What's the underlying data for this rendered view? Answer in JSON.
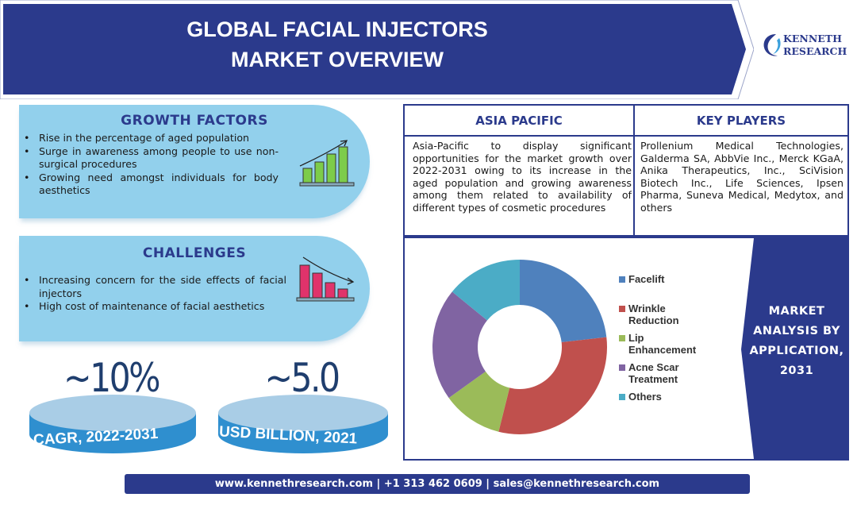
{
  "header": {
    "title_line1": "GLOBAL FACIAL INJECTORS",
    "title_line2": "MARKET OVERVIEW",
    "logo_line1": "KENNETH",
    "logo_line2": "RESEARCH",
    "brand_color": "#2b3a8c"
  },
  "growth_factors": {
    "title": "GROWTH FACTORS",
    "items": [
      "Rise in the percentage of aged population",
      "Surge in awareness among people to use non-surgical procedures",
      "Growing need amongst individuals for body aesthetics"
    ],
    "icon": "bar-chart-up-icon"
  },
  "challenges": {
    "title": "CHALLENGES",
    "items": [
      "Increasing concern for the side effects of facial injectors",
      "High cost of maintenance of facial aesthetics"
    ],
    "icon": "bar-chart-down-icon"
  },
  "stats": [
    {
      "value": "~10%",
      "label": "CAGR, 2022-2031"
    },
    {
      "value": "~5.0",
      "label": "USD BILLION, 2021"
    }
  ],
  "asia_pacific": {
    "title": "ASIA PACIFIC",
    "text": "Asia-Pacific to display significant opportunities for the market growth over 2022-2031 owing to its increase in the aged population and growing awareness among them related to availability of different types of cosmetic procedures"
  },
  "key_players": {
    "title": "KEY PLAYERS",
    "text": "Prollenium Medical Technologies, Galderma SA, AbbVie Inc., Merck KGaA, Anika Therapeutics, Inc., SciVision Biotech Inc., Life Sciences, Ipsen Pharma, Suneva Medical, Medytox, and others"
  },
  "chart_panel": {
    "side_label_lines": [
      "MARKET",
      "ANALYSIS BY",
      "APPLICATION,",
      "2031"
    ]
  },
  "chart_data": {
    "type": "pie",
    "donut": true,
    "legend_position": "right",
    "categories": [
      "Facelift",
      "Wrinkle Reduction",
      "Lip Enhancement",
      "Acne Scar Treatment",
      "Others"
    ],
    "legend_lines": [
      [
        "Facelift"
      ],
      [
        "Wrinkle",
        "Reduction"
      ],
      [
        "Lip",
        "Enhancement"
      ],
      [
        "Acne Scar",
        "Treatment"
      ],
      [
        "Others"
      ]
    ],
    "values": [
      23.2,
      30.7,
      11.2,
      20.8,
      14.1
    ],
    "colors": [
      "#4f81bd",
      "#c0504d",
      "#9bbb59",
      "#8064a2",
      "#4bacc6"
    ]
  },
  "footer": {
    "text": "www.kennethresearch.com | +1 313 462 0609 | sales@kennethresearch.com"
  }
}
